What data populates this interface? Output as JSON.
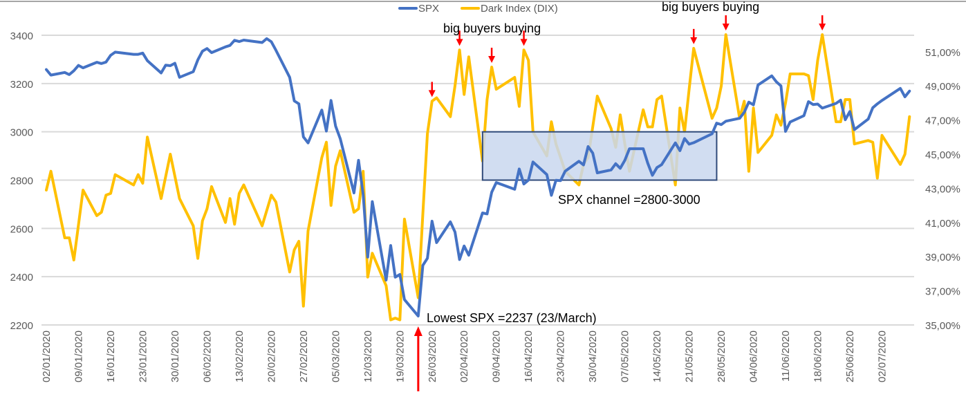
{
  "chart_data": {
    "type": "line",
    "title": "",
    "x_axis": {
      "type": "date",
      "format": "DD/MM/YYYY",
      "tick_interval_days": 7,
      "first_tick": "02/01/2020",
      "last_tick": "02/07/2020"
    },
    "y_left": {
      "min": 2200,
      "max": 3400,
      "step": 200,
      "ticks": [
        "2200",
        "2400",
        "2600",
        "2800",
        "3000",
        "3200",
        "3400"
      ]
    },
    "y_right": {
      "min": 35,
      "max": 52,
      "ticks": [
        "35,00%",
        "37,00%",
        "39,00%",
        "41,00%",
        "43,00%",
        "45,00%",
        "47,00%",
        "49,00%",
        "51,00%"
      ],
      "tick_values": [
        35,
        37,
        39,
        41,
        43,
        45,
        47,
        49,
        51
      ]
    },
    "grid": true,
    "legend": {
      "placement": "top",
      "entries": [
        "SPX",
        "Dark Index (DIX)"
      ]
    },
    "series": [
      {
        "name": "SPX",
        "axis": "left",
        "color": "#4472C4",
        "points": [
          [
            "02/01",
            3258
          ],
          [
            "03/01",
            3235
          ],
          [
            "06/01",
            3246
          ],
          [
            "07/01",
            3237
          ],
          [
            "08/01",
            3253
          ],
          [
            "09/01",
            3275
          ],
          [
            "10/01",
            3265
          ],
          [
            "13/01",
            3288
          ],
          [
            "14/01",
            3283
          ],
          [
            "15/01",
            3289
          ],
          [
            "16/01",
            3317
          ],
          [
            "17/01",
            3330
          ],
          [
            "21/01",
            3321
          ],
          [
            "22/01",
            3321
          ],
          [
            "23/01",
            3326
          ],
          [
            "24/01",
            3295
          ],
          [
            "27/01",
            3244
          ],
          [
            "28/01",
            3276
          ],
          [
            "29/01",
            3274
          ],
          [
            "30/01",
            3284
          ],
          [
            "31/01",
            3226
          ],
          [
            "03/02",
            3249
          ],
          [
            "04/02",
            3298
          ],
          [
            "05/02",
            3334
          ],
          [
            "06/02",
            3345
          ],
          [
            "07/02",
            3328
          ],
          [
            "10/02",
            3352
          ],
          [
            "11/02",
            3358
          ],
          [
            "12/02",
            3379
          ],
          [
            "13/02",
            3374
          ],
          [
            "14/02",
            3380
          ],
          [
            "18/02",
            3370
          ],
          [
            "19/02",
            3386
          ],
          [
            "20/02",
            3373
          ],
          [
            "21/02",
            3338
          ],
          [
            "24/02",
            3226
          ],
          [
            "25/02",
            3128
          ],
          [
            "26/02",
            3116
          ],
          [
            "27/02",
            2979
          ],
          [
            "28/02",
            2954
          ],
          [
            "02/03",
            3090
          ],
          [
            "03/03",
            3003
          ],
          [
            "04/03",
            3130
          ],
          [
            "05/03",
            3024
          ],
          [
            "06/03",
            2972
          ],
          [
            "09/03",
            2747
          ],
          [
            "10/03",
            2882
          ],
          [
            "11/03",
            2741
          ],
          [
            "12/03",
            2481
          ],
          [
            "13/03",
            2711
          ],
          [
            "16/03",
            2386
          ],
          [
            "17/03",
            2529
          ],
          [
            "18/03",
            2398
          ],
          [
            "19/03",
            2409
          ],
          [
            "20/03",
            2305
          ],
          [
            "23/03",
            2237
          ],
          [
            "24/03",
            2447
          ],
          [
            "25/03",
            2476
          ],
          [
            "26/03",
            2630
          ],
          [
            "27/03",
            2541
          ],
          [
            "30/03",
            2627
          ],
          [
            "31/03",
            2585
          ],
          [
            "01/04",
            2471
          ],
          [
            "02/04",
            2527
          ],
          [
            "03/04",
            2489
          ],
          [
            "06/04",
            2664
          ],
          [
            "07/04",
            2660
          ],
          [
            "08/04",
            2750
          ],
          [
            "09/04",
            2790
          ],
          [
            "13/04",
            2762
          ],
          [
            "14/04",
            2846
          ],
          [
            "15/04",
            2784
          ],
          [
            "16/04",
            2800
          ],
          [
            "17/04",
            2875
          ],
          [
            "20/04",
            2823
          ],
          [
            "21/04",
            2737
          ],
          [
            "22/04",
            2799
          ],
          [
            "23/04",
            2798
          ],
          [
            "24/04",
            2837
          ],
          [
            "27/04",
            2878
          ],
          [
            "28/04",
            2863
          ],
          [
            "29/04",
            2939
          ],
          [
            "30/04",
            2912
          ],
          [
            "01/05",
            2830
          ],
          [
            "04/05",
            2842
          ],
          [
            "05/05",
            2868
          ],
          [
            "06/05",
            2849
          ],
          [
            "07/05",
            2882
          ],
          [
            "08/05",
            2930
          ],
          [
            "11/05",
            2930
          ],
          [
            "12/05",
            2870
          ],
          [
            "13/05",
            2820
          ],
          [
            "14/05",
            2852
          ],
          [
            "15/05",
            2864
          ],
          [
            "18/05",
            2954
          ],
          [
            "19/05",
            2922
          ],
          [
            "20/05",
            2972
          ],
          [
            "21/05",
            2949
          ],
          [
            "22/05",
            2955
          ],
          [
            "26/05",
            2992
          ],
          [
            "27/05",
            3036
          ],
          [
            "28/05",
            3030
          ],
          [
            "29/05",
            3044
          ],
          [
            "01/06",
            3056
          ],
          [
            "02/06",
            3081
          ],
          [
            "03/06",
            3123
          ],
          [
            "04/06",
            3112
          ],
          [
            "05/06",
            3194
          ],
          [
            "08/06",
            3232
          ],
          [
            "09/06",
            3207
          ],
          [
            "10/06",
            3190
          ],
          [
            "11/06",
            3002
          ],
          [
            "12/06",
            3041
          ],
          [
            "15/06",
            3067
          ],
          [
            "16/06",
            3125
          ],
          [
            "17/06",
            3113
          ],
          [
            "18/06",
            3115
          ],
          [
            "19/06",
            3098
          ],
          [
            "22/06",
            3118
          ],
          [
            "23/06",
            3131
          ],
          [
            "24/06",
            3050
          ],
          [
            "25/06",
            3084
          ],
          [
            "26/06",
            3009
          ],
          [
            "29/06",
            3053
          ],
          [
            "30/06",
            3100
          ],
          [
            "01/07",
            3116
          ],
          [
            "02/07",
            3130
          ],
          [
            "06/07",
            3180
          ],
          [
            "07/07",
            3145
          ],
          [
            "08/07",
            3169
          ]
        ]
      },
      {
        "name": "Dark Index (DIX)",
        "axis": "right",
        "color": "#FFC000",
        "points": [
          [
            "02/01",
            42.9
          ],
          [
            "03/01",
            44.0
          ],
          [
            "06/01",
            40.1
          ],
          [
            "07/01",
            40.1
          ],
          [
            "08/01",
            38.8
          ],
          [
            "10/01",
            42.9
          ],
          [
            "13/01",
            41.4
          ],
          [
            "14/01",
            41.6
          ],
          [
            "15/01",
            42.6
          ],
          [
            "16/01",
            42.7
          ],
          [
            "17/01",
            43.8
          ],
          [
            "21/01",
            43.2
          ],
          [
            "22/01",
            43.8
          ],
          [
            "23/01",
            43.3
          ],
          [
            "24/01",
            46.0
          ],
          [
            "27/01",
            42.4
          ],
          [
            "29/01",
            45.0
          ],
          [
            "31/01",
            42.4
          ],
          [
            "03/02",
            40.8
          ],
          [
            "04/02",
            38.9
          ],
          [
            "05/02",
            41.1
          ],
          [
            "06/02",
            41.8
          ],
          [
            "07/02",
            43.1
          ],
          [
            "10/02",
            41.0
          ],
          [
            "11/02",
            42.4
          ],
          [
            "12/02",
            40.9
          ],
          [
            "13/02",
            42.7
          ],
          [
            "14/02",
            43.2
          ],
          [
            "18/02",
            40.8
          ],
          [
            "20/02",
            42.6
          ],
          [
            "21/02",
            42.2
          ],
          [
            "24/02",
            38.1
          ],
          [
            "25/02",
            39.4
          ],
          [
            "26/02",
            39.9
          ],
          [
            "27/02",
            36.1
          ],
          [
            "28/02",
            40.5
          ],
          [
            "02/03",
            44.8
          ],
          [
            "03/03",
            45.7
          ],
          [
            "04/03",
            42.0
          ],
          [
            "05/03",
            44.3
          ],
          [
            "06/03",
            45.2
          ],
          [
            "09/03",
            41.6
          ],
          [
            "10/03",
            41.8
          ],
          [
            "11/03",
            44.0
          ],
          [
            "12/03",
            37.8
          ],
          [
            "13/03",
            39.2
          ],
          [
            "16/03",
            37.3
          ],
          [
            "17/03",
            35.3
          ],
          [
            "18/03",
            35.4
          ],
          [
            "19/03",
            35.3
          ],
          [
            "20/03",
            41.2
          ],
          [
            "23/03",
            36.6
          ],
          [
            "24/03",
            41.5
          ],
          [
            "25/03",
            46.2
          ],
          [
            "26/03",
            48.1
          ],
          [
            "27/03",
            48.3
          ],
          [
            "30/03",
            47.2
          ],
          [
            "31/03",
            49.0
          ],
          [
            "01/04",
            51.1
          ],
          [
            "02/04",
            48.5
          ],
          [
            "03/04",
            50.7
          ],
          [
            "06/04",
            44.6
          ],
          [
            "07/04",
            48.2
          ],
          [
            "08/04",
            50.1
          ],
          [
            "09/04",
            48.8
          ],
          [
            "13/04",
            49.5
          ],
          [
            "14/04",
            47.8
          ],
          [
            "15/04",
            51.1
          ],
          [
            "16/04",
            50.5
          ],
          [
            "17/04",
            46.3
          ],
          [
            "20/04",
            44.9
          ],
          [
            "21/04",
            46.9
          ],
          [
            "22/04",
            45.6
          ],
          [
            "23/04",
            44.8
          ],
          [
            "24/04",
            44.0
          ],
          [
            "27/04",
            43.2
          ],
          [
            "28/04",
            44.4
          ],
          [
            "29/04",
            44.8
          ],
          [
            "30/04",
            46.6
          ],
          [
            "01/05",
            48.4
          ],
          [
            "04/05",
            46.5
          ],
          [
            "05/05",
            45.4
          ],
          [
            "06/05",
            47.3
          ],
          [
            "07/05",
            45.6
          ],
          [
            "08/05",
            44.0
          ],
          [
            "11/05",
            47.6
          ],
          [
            "12/05",
            46.6
          ],
          [
            "13/05",
            46.6
          ],
          [
            "14/05",
            48.2
          ],
          [
            "15/05",
            48.4
          ],
          [
            "18/05",
            43.2
          ],
          [
            "19/05",
            47.7
          ],
          [
            "20/05",
            46.3
          ],
          [
            "21/05",
            48.8
          ],
          [
            "22/05",
            51.2
          ],
          [
            "26/05",
            47.1
          ],
          [
            "27/05",
            47.7
          ],
          [
            "28/05",
            49.0
          ],
          [
            "29/05",
            52.0
          ],
          [
            "01/06",
            47.1
          ],
          [
            "02/06",
            48.1
          ],
          [
            "03/06",
            44.0
          ],
          [
            "04/06",
            47.7
          ],
          [
            "05/06",
            45.1
          ],
          [
            "08/06",
            46.1
          ],
          [
            "09/06",
            47.3
          ],
          [
            "10/06",
            46.7
          ],
          [
            "11/06",
            48.0
          ],
          [
            "12/06",
            49.7
          ],
          [
            "15/06",
            49.7
          ],
          [
            "16/06",
            49.6
          ],
          [
            "17/06",
            48.2
          ],
          [
            "18/06",
            50.5
          ],
          [
            "19/06",
            52.0
          ],
          [
            "22/06",
            46.9
          ],
          [
            "23/06",
            46.9
          ],
          [
            "24/06",
            48.2
          ],
          [
            "25/06",
            48.2
          ],
          [
            "26/06",
            45.6
          ],
          [
            "29/06",
            45.8
          ],
          [
            "30/06",
            45.7
          ],
          [
            "01/07",
            43.6
          ],
          [
            "02/07",
            46.1
          ],
          [
            "06/07",
            44.4
          ],
          [
            "07/07",
            45.0
          ],
          [
            "08/07",
            47.2
          ]
        ]
      }
    ],
    "annotations": {
      "big_buyers_label_1": "big buyers buying",
      "big_buyers_label_2": "big buyers buying",
      "channel_label": "SPX channel =2800-3000",
      "lowest_label": "Lowest SPX =2237 (23/March)",
      "lowest_date": "23/03",
      "channel_box": {
        "x_from": "06/04",
        "x_to": "27/05",
        "y_from": 2800,
        "y_to": 3000,
        "fill": "#C9D7EE",
        "stroke": "#2F4A7A"
      },
      "arrow_color": "#FF0000",
      "buy_arrow_dates": [
        "26/03",
        "01/04",
        "08/04",
        "15/04",
        "22/05",
        "29/05",
        "19/06"
      ]
    },
    "year": 2020
  }
}
